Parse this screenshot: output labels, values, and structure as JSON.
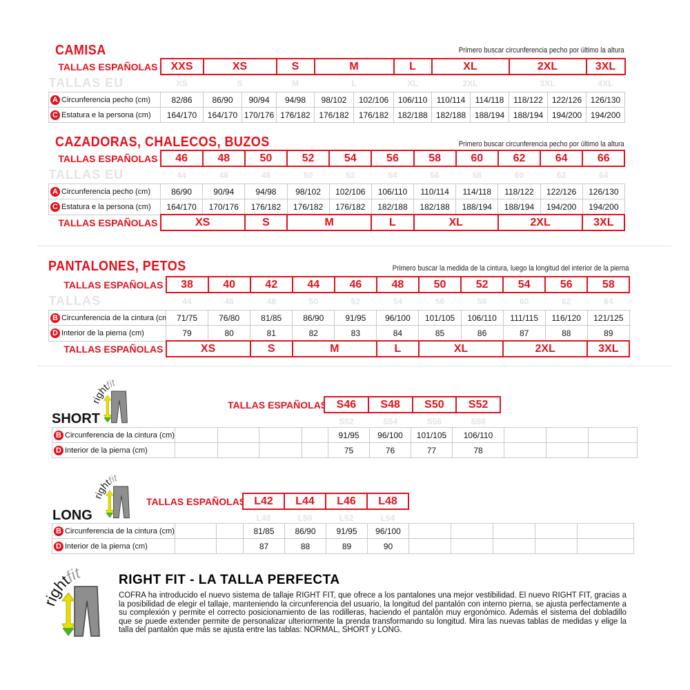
{
  "colors": {
    "accent": "#e3101b",
    "eu_text": "#e4e4e4",
    "grid": "#c9c9c9"
  },
  "sections": [
    {
      "id": "camisa",
      "title": "CAMISA",
      "note": "Primero buscar circunferencia pecho por último la altura",
      "header_label": "TALLAS ESPAÑOLAS",
      "header": [
        {
          "label": "XXS",
          "span": 1
        },
        {
          "label": "XS",
          "span": 2
        },
        {
          "label": "S",
          "span": 1
        },
        {
          "label": "M",
          "span": 2
        },
        {
          "label": "L",
          "span": 1
        },
        {
          "label": "XL",
          "span": 2
        },
        {
          "label": "2XL",
          "span": 2
        },
        {
          "label": "3XL",
          "span": 1
        }
      ],
      "eu_label": "TALLAS EU",
      "eu": [
        {
          "label": "XS",
          "span": 1
        },
        {
          "label": "S",
          "span": 2
        },
        {
          "label": "M",
          "span": 1
        },
        {
          "label": "L",
          "span": 2
        },
        {
          "label": "XL",
          "span": 1
        },
        {
          "label": "2XL",
          "span": 2
        },
        {
          "label": "3XL",
          "span": 2
        },
        {
          "label": "4XL",
          "span": 1
        }
      ],
      "rows": [
        {
          "badge": "A",
          "label": "Circunferencia pecho (cm)",
          "values": [
            "82/86",
            "86/90",
            "90/94",
            "94/98",
            "98/102",
            "102/106",
            "106/110",
            "110/114",
            "114/118",
            "118/122",
            "122/126",
            "126/130"
          ]
        },
        {
          "badge": "C",
          "label": "Estatura e la persona (cm)",
          "values": [
            "164/170",
            "164/170",
            "170/176",
            "176/182",
            "176/182",
            "176/182",
            "182/188",
            "182/188",
            "188/194",
            "188/194",
            "194/200",
            "194/200"
          ]
        }
      ]
    },
    {
      "id": "cazadoras",
      "title": "CAZADORAS, CHALECOS, BUZOS",
      "note": "Primero buscar circunferencia pecho por último la altura",
      "header_label": "TALLAS ESPAÑOLAS",
      "header": [
        {
          "label": "46",
          "span": 1
        },
        {
          "label": "48",
          "span": 1
        },
        {
          "label": "50",
          "span": 1
        },
        {
          "label": "52",
          "span": 1
        },
        {
          "label": "54",
          "span": 1
        },
        {
          "label": "56",
          "span": 1
        },
        {
          "label": "58",
          "span": 1
        },
        {
          "label": "60",
          "span": 1
        },
        {
          "label": "62",
          "span": 1
        },
        {
          "label": "64",
          "span": 1
        },
        {
          "label": "66",
          "span": 1
        }
      ],
      "eu_label": "TALLAS EU",
      "eu": [
        {
          "label": "44",
          "span": 1
        },
        {
          "label": "46",
          "span": 1
        },
        {
          "label": "48",
          "span": 1
        },
        {
          "label": "50",
          "span": 1
        },
        {
          "label": "52",
          "span": 1
        },
        {
          "label": "54",
          "span": 1
        },
        {
          "label": "56",
          "span": 1
        },
        {
          "label": "58",
          "span": 1
        },
        {
          "label": "60",
          "span": 1
        },
        {
          "label": "62",
          "span": 1
        },
        {
          "label": "64",
          "span": 1
        }
      ],
      "rows": [
        {
          "badge": "A",
          "label": "Circunferencia pecho (cm)",
          "values": [
            "86/90",
            "90/94",
            "94/98",
            "98/102",
            "102/106",
            "106/110",
            "110/114",
            "114/118",
            "118/122",
            "122/126",
            "126/130"
          ]
        },
        {
          "badge": "C",
          "label": "Estatura e la persona (cm)",
          "values": [
            "164/170",
            "170/176",
            "176/182",
            "176/182",
            "176/182",
            "182/188",
            "182/188",
            "188/194",
            "188/194",
            "194/200",
            "194/200"
          ]
        }
      ],
      "footer_label": "TALLAS ESPAÑOLAS",
      "footer": [
        {
          "label": "XS",
          "span": 2
        },
        {
          "label": "S",
          "span": 1
        },
        {
          "label": "M",
          "span": 2
        },
        {
          "label": "L",
          "span": 1
        },
        {
          "label": "XL",
          "span": 2
        },
        {
          "label": "2XL",
          "span": 2
        },
        {
          "label": "3XL",
          "span": 1
        }
      ]
    },
    {
      "id": "pantalones",
      "title": "PANTALONES, PETOS",
      "note": "Primero buscar la medida de la cintura, luego la longitud del interior de la pierna",
      "header_label": "TALLAS ESPAÑOLAS",
      "header": [
        {
          "label": "38",
          "span": 1
        },
        {
          "label": "40",
          "span": 1
        },
        {
          "label": "42",
          "span": 1
        },
        {
          "label": "44",
          "span": 1
        },
        {
          "label": "46",
          "span": 1
        },
        {
          "label": "48",
          "span": 1
        },
        {
          "label": "50",
          "span": 1
        },
        {
          "label": "52",
          "span": 1
        },
        {
          "label": "54",
          "span": 1
        },
        {
          "label": "56",
          "span": 1
        },
        {
          "label": "58",
          "span": 1
        }
      ],
      "eu_label": "TALLAS",
      "eu": [
        {
          "label": "44",
          "span": 1
        },
        {
          "label": "46",
          "span": 1
        },
        {
          "label": "48",
          "span": 1
        },
        {
          "label": "50",
          "span": 1
        },
        {
          "label": "52",
          "span": 1
        },
        {
          "label": "54",
          "span": 1
        },
        {
          "label": "56",
          "span": 1
        },
        {
          "label": "58",
          "span": 1
        },
        {
          "label": "60",
          "span": 1
        },
        {
          "label": "62",
          "span": 1
        },
        {
          "label": "64",
          "span": 1
        }
      ],
      "rows": [
        {
          "badge": "B",
          "label": "Circunferencia de la cintura (cm)",
          "values": [
            "71/75",
            "76/80",
            "81/85",
            "86/90",
            "91/95",
            "96/100",
            "101/105",
            "106/110",
            "111/115",
            "116/120",
            "121/125"
          ]
        },
        {
          "badge": "D",
          "label": "Interior de la pierna (cm)",
          "values": [
            "79",
            "80",
            "81",
            "82",
            "83",
            "84",
            "85",
            "86",
            "87",
            "88",
            "89"
          ]
        }
      ],
      "footer_label": "TALLAS ESPAÑOLAS",
      "footer": [
        {
          "label": "XS",
          "span": 2
        },
        {
          "label": "S",
          "span": 1
        },
        {
          "label": "M",
          "span": 2
        },
        {
          "label": "L",
          "span": 1
        },
        {
          "label": "XL",
          "span": 2
        },
        {
          "label": "2XL",
          "span": 2
        },
        {
          "label": "3XL",
          "span": 1
        }
      ]
    },
    {
      "id": "short",
      "title": "SHORT",
      "logo_text": "rightfit",
      "header_label": "TALLAS ESPAÑOLAS",
      "header": [
        {
          "label": "S46",
          "span": 1
        },
        {
          "label": "S48",
          "span": 1
        },
        {
          "label": "S50",
          "span": 1
        },
        {
          "label": "S52",
          "span": 1
        }
      ],
      "eu": [
        {
          "label": "S52",
          "span": 1
        },
        {
          "label": "S54",
          "span": 1
        },
        {
          "label": "S56",
          "span": 1
        },
        {
          "label": "S58",
          "span": 1
        }
      ],
      "lead_empty": 4,
      "trail_empty": 3,
      "rows": [
        {
          "badge": "B",
          "label": "Circunferencia de la cintura (cm)",
          "values": [
            "91/95",
            "96/100",
            "101/105",
            "106/110"
          ]
        },
        {
          "badge": "D",
          "label": "Interior de la pierna (cm)",
          "values": [
            "75",
            "76",
            "77",
            "78"
          ]
        }
      ]
    },
    {
      "id": "long",
      "title": "LONG",
      "logo_text": "rightfit",
      "header_label": "TALLAS ESPAÑOLAS",
      "header": [
        {
          "label": "L42",
          "span": 1
        },
        {
          "label": "L44",
          "span": 1
        },
        {
          "label": "L46",
          "span": 1
        },
        {
          "label": "L48",
          "span": 1
        }
      ],
      "eu": [
        {
          "label": "L48",
          "span": 1
        },
        {
          "label": "L50",
          "span": 1
        },
        {
          "label": "L52",
          "span": 1
        },
        {
          "label": "L54",
          "span": 1
        }
      ],
      "lead_empty": 2,
      "trail_empty": 5,
      "rows": [
        {
          "badge": "B",
          "label": "Circunferencia de la cintura (cm)",
          "values": [
            "81/85",
            "86/90",
            "91/95",
            "96/100"
          ]
        },
        {
          "badge": "D",
          "label": "Interior de la pierna (cm)",
          "values": [
            "87",
            "88",
            "89",
            "90"
          ]
        }
      ]
    }
  ],
  "info": {
    "logo_text": "rightfit",
    "title": "RIGHT FIT - LA TALLA PERFECTA",
    "body": "COFRA ha introducido el nuevo sistema de tallaje RIGHT FIT, que ofrece a los pantalones una mejor vestibilidad. El nuevo RIGHT FIT, gracias a la posibilidad de elegir el tallaje, manteniendo la circunferencia del usuario, la longitud del pantalón con interno pierna, se ajusta perfectamente a su complexión y permite el correcto posicionamiento de las rodilleras, haciendo el pantalón muy ergonómico. Además el sistema del dobladillo que se puede extender permite de personalizar ulteriormente la prenda transformando su longitud. Mira las nuevas tablas de medidas y elige la talla del pantalón que más se ajusta entre las tablas: NORMAL, SHORT y LONG."
  }
}
